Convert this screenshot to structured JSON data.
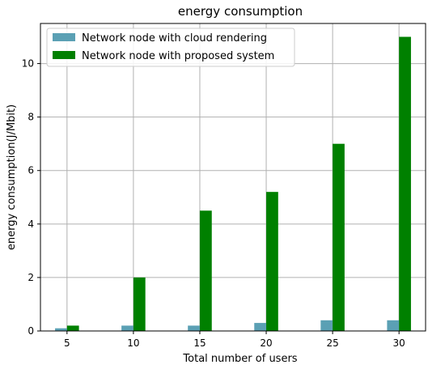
{
  "chart_data": {
    "type": "bar",
    "title": "energy consumption",
    "xlabel": "Total number of users",
    "ylabel": "energy consumption(J/Mbit)",
    "categories": [
      "5",
      "10",
      "15",
      "20",
      "25",
      "30"
    ],
    "series": [
      {
        "name": "Network node with cloud rendering",
        "color": "#5ba0b4",
        "values": [
          0.1,
          0.2,
          0.2,
          0.3,
          0.4,
          0.4
        ]
      },
      {
        "name": "Network node with proposed system",
        "color": "#008000",
        "values": [
          0.2,
          2.0,
          4.5,
          5.2,
          7.0,
          11.0
        ]
      }
    ],
    "x_ticks": [
      5,
      10,
      15,
      20,
      25,
      30
    ],
    "y_ticks": [
      0,
      2,
      4,
      6,
      8,
      10
    ],
    "xlim": [
      3.0,
      32.0
    ],
    "ylim": [
      0,
      11.5
    ],
    "grid": true,
    "legend_position": "upper-left"
  }
}
